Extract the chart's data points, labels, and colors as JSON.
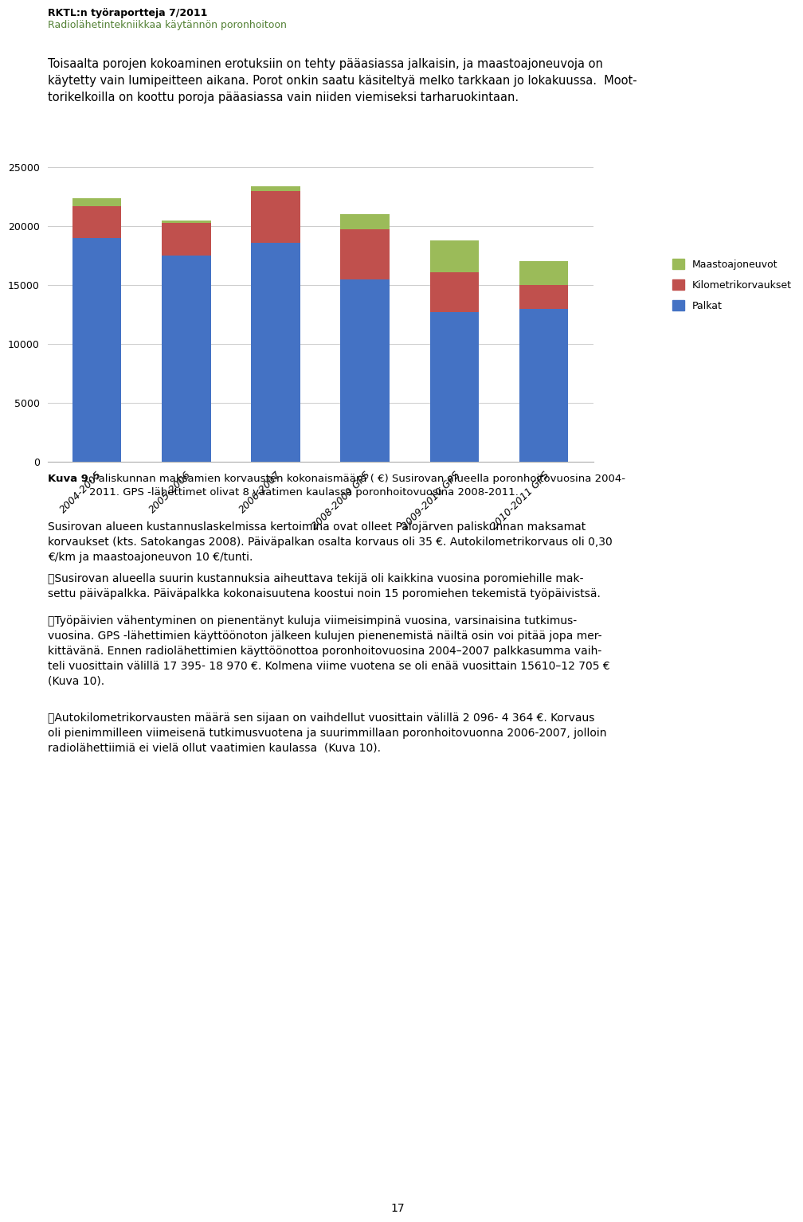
{
  "categories": [
    "2004-2005",
    "2005-2006",
    "2006-2007",
    "2008-2009 GPS",
    "2009-2010 GPS",
    "2010-2011 GPS"
  ],
  "palkat": [
    19000,
    17500,
    18600,
    15500,
    12700,
    13000
  ],
  "kilometrikorvaukset": [
    2700,
    2800,
    4400,
    4200,
    3400,
    2000
  ],
  "maastoajoneuvot": [
    650,
    200,
    350,
    1300,
    2700,
    2000
  ],
  "colors": {
    "palkat": "#4472C4",
    "kilometrikorvaukset": "#C0504D",
    "maastoajoneuvot": "#9BBB59"
  },
  "ylim": [
    0,
    25000
  ],
  "yticks": [
    0,
    5000,
    10000,
    15000,
    20000,
    25000
  ],
  "background_color": "#FFFFFF",
  "header_bold": "RKTL:n työraportteja 7/2011",
  "header_green": "Radiolähetintekniikkaa käytännön poronhoitoon",
  "para1": "Toisaalta porojen kokoaminen erotuksiin on tehty pääasiassa jalkaisin, ja maastoajoneuvoja on\nkäytetty vain lumipeitteen aikana. Porot onkin saatu käsiteltyä melko tarkkaan jo lokakuussa.  Moot-\ntorikelkoilla on koottu poroja pääasiassa vain niiden viemiseksi tarharuokintaan.",
  "caption_bold": "Kuva 9.",
  "caption_rest": " Paliskunnan maksamien korvausten kokonaismäärä ( €) Susirovan alueella poronhoitovuosina 2004-\n2011. GPS -lähettimet olivat 8 vaatimen kaulassa poronhoitovuosina 2008-2011.",
  "para2": "Susirovan alueen kustannuslaskelmissa kertoimina ovat olleet Palojärven paliskunnan maksamat\nkorvaukset (kts. Satokangas 2008). Päiväpalkan osalta korvaus oli 35 €. Autokilometrikorvaus oli 0,30\n€/km ja maastoajoneuvon 10 €/tunti.",
  "para3": "\tSusirovan alueella suurin kustannuksia aiheuttava tekijä oli kaikkina vuosina poromiehille mak-\nsettu päiväpalkka. Päiväpalkka kokonaisuutena koostui noin 15 poromiehen tekemistä työpäivistsä.",
  "para4": "\tTyöpäivien vähentyminen on pienentänyt kuluja viimeisimpinä vuosina, varsinaisina tutkimus-\nvuosina. GPS -lähettimien käyttöönoton jälkeen kulujen pienenemistä näiltä osin voi pitää jopa mer-\nkittävänä. Ennen radiolähettimien käyttöönottoa poronhoitovuosina 2004–2007 palkkasumma vaih-\nteli vuosittain välillä 17 395- 18 970 €. Kolmena viime vuotena se oli enää vuosittain 15610–12 705 €\n(Kuva 10).",
  "para5": "\tAutokilometrikorvausten määrä sen sijaan on vaihdellut vuosittain välillä 2 096- 4 364 €. Korvaus\noli pienimmilleen viimeisenä tutkimusvuotena ja suurimmillaan poronhoitovuonna 2006-2007, jolloin\nradiolähettiimiä ei vielä ollut vaatimien kaulassa  (Kuva 10).",
  "page_number": "17"
}
